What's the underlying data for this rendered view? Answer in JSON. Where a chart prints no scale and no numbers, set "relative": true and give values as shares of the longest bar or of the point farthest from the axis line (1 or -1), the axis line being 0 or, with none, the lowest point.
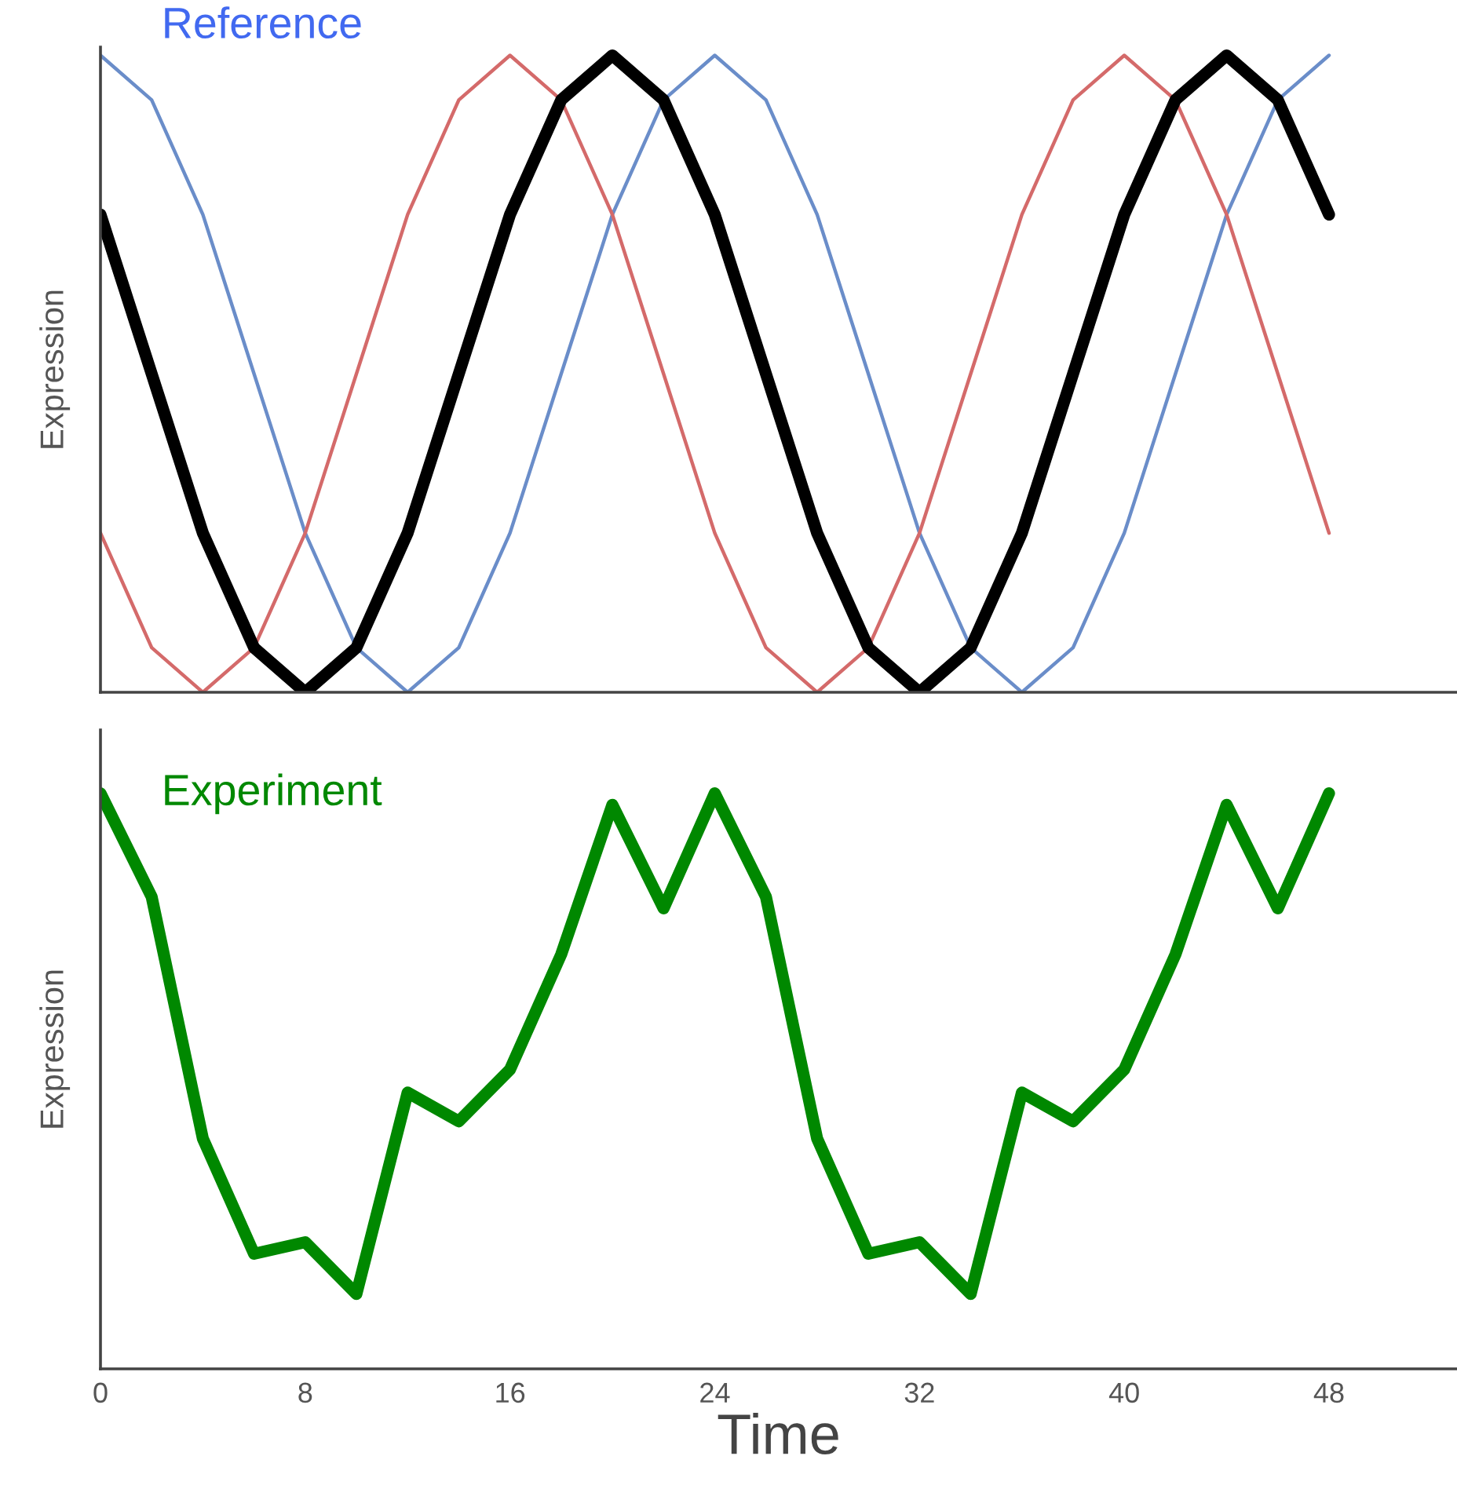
{
  "chart_data": [
    {
      "type": "line",
      "title": "Reference",
      "ylabel": "Expression",
      "relative": true,
      "xlim": [
        0,
        53
      ],
      "tick_labels": false,
      "grid": false,
      "legend": false,
      "x": [
        0,
        2,
        4,
        6,
        8,
        10,
        12,
        14,
        16,
        18,
        20,
        22,
        24,
        26,
        28,
        30,
        32,
        34,
        36,
        38,
        40,
        42,
        44,
        46,
        48
      ],
      "series": [
        {
          "color": "#6a8dc9",
          "values": [
            1,
            0.93,
            0.75,
            0.5,
            0.25,
            0.07,
            0,
            0.07,
            0.25,
            0.5,
            0.75,
            0.93,
            1,
            0.93,
            0.75,
            0.5,
            0.25,
            0.07,
            0,
            0.07,
            0.25,
            0.5,
            0.75,
            0.93,
            1
          ]
        },
        {
          "color": "#d46a6a",
          "values": [
            0.25,
            0.07,
            0,
            0.07,
            0.25,
            0.5,
            0.75,
            0.93,
            1,
            0.93,
            0.75,
            0.5,
            0.25,
            0.07,
            0,
            0.07,
            0.25,
            0.5,
            0.75,
            0.93,
            1,
            0.93,
            0.75,
            0.5,
            0.25
          ]
        },
        {
          "color": "#000000",
          "values": [
            0.75,
            0.5,
            0.25,
            0.07,
            0,
            0.07,
            0.25,
            0.5,
            0.75,
            0.93,
            1,
            0.93,
            0.75,
            0.5,
            0.25,
            0.07,
            0,
            0.07,
            0.25,
            0.5,
            0.75,
            0.93,
            1,
            0.93,
            0.75
          ]
        }
      ]
    },
    {
      "type": "line",
      "ylabel": "Expression",
      "xlabel": "Time",
      "relative": true,
      "xlim": [
        0,
        53
      ],
      "xticks": [
        0,
        8,
        16,
        24,
        32,
        40,
        48
      ],
      "tick_labels": "x",
      "grid": false,
      "legend": false,
      "x": [
        0,
        2,
        4,
        6,
        8,
        10,
        12,
        14,
        16,
        18,
        20,
        22,
        24,
        26,
        28,
        30,
        32,
        34,
        36,
        38,
        40,
        42,
        44,
        46,
        48
      ],
      "series": [
        {
          "name": "Experiment",
          "color": "#008800",
          "values": [
            1,
            0.82,
            0.4,
            0.2,
            0.22,
            0.13,
            0.48,
            0.43,
            0.52,
            0.72,
            0.98,
            0.8,
            1,
            0.82,
            0.4,
            0.2,
            0.22,
            0.13,
            0.48,
            0.43,
            0.52,
            0.72,
            0.98,
            0.8,
            1
          ]
        }
      ]
    }
  ]
}
